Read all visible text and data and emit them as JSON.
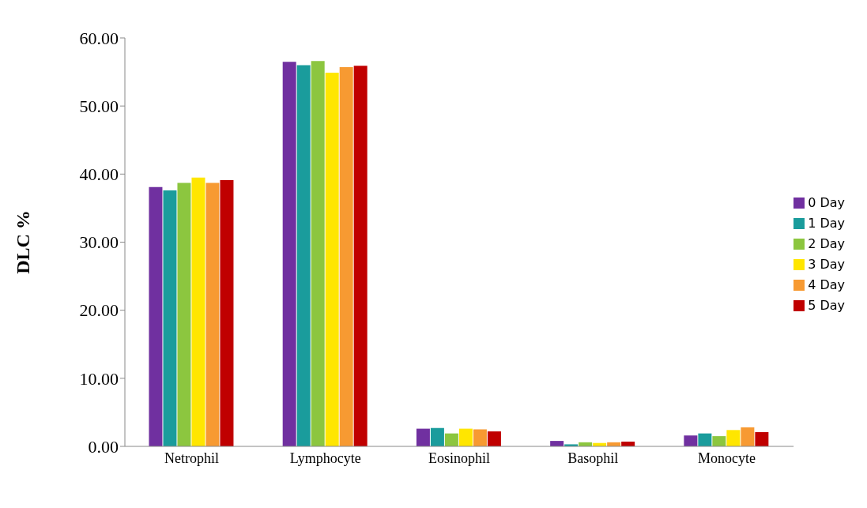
{
  "chart_data": {
    "type": "bar",
    "ylabel": "DLC  %",
    "categories": [
      "Netrophil",
      "Lymphocyte",
      "Eosinophil",
      "Basophil",
      "Monocyte"
    ],
    "series": [
      {
        "name": "0 Day",
        "color": "#7030a0",
        "values": [
          38.1,
          56.5,
          2.6,
          0.8,
          1.6
        ]
      },
      {
        "name": "1 Day",
        "color": "#1a9c9c",
        "values": [
          37.6,
          56.0,
          2.7,
          0.3,
          1.9
        ]
      },
      {
        "name": "2 Day",
        "color": "#8cc63f",
        "values": [
          38.7,
          56.6,
          1.9,
          0.6,
          1.5
        ]
      },
      {
        "name": "3 Day",
        "color": "#ffe600",
        "values": [
          39.5,
          54.9,
          2.6,
          0.5,
          2.4
        ]
      },
      {
        "name": "4 Day",
        "color": "#f79a32",
        "values": [
          38.7,
          55.7,
          2.5,
          0.6,
          2.8
        ]
      },
      {
        "name": "5 Day",
        "color": "#c00000",
        "values": [
          39.1,
          55.9,
          2.2,
          0.7,
          2.1
        ]
      }
    ],
    "ylim": [
      0,
      60
    ],
    "yticks": [
      {
        "value": 0,
        "label": "0.00"
      },
      {
        "value": 10,
        "label": "10.00"
      },
      {
        "value": 20,
        "label": "20.00"
      },
      {
        "value": 30,
        "label": "30.00"
      },
      {
        "value": 40,
        "label": "40.00"
      },
      {
        "value": 50,
        "label": "50.00"
      },
      {
        "value": 60,
        "label": "60.00"
      }
    ],
    "grid": false,
    "legend": "right"
  }
}
